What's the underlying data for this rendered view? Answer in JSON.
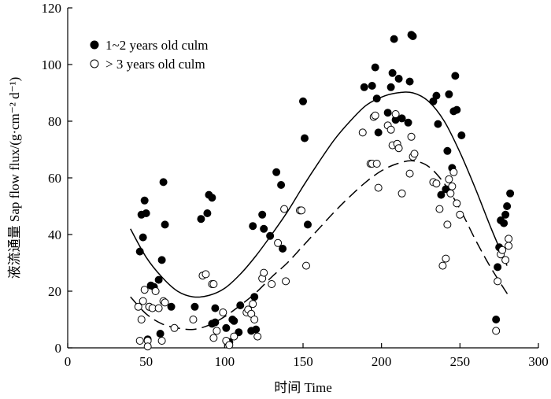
{
  "chart_data": {
    "type": "scatter",
    "title": "",
    "xlabel": "时间 Time",
    "ylabel": "液流通量 Sap flow flux/(g·cm⁻² d⁻¹)",
    "xlim": [
      0,
      300
    ],
    "ylim": [
      0,
      120
    ],
    "xticks": [
      0,
      50,
      100,
      150,
      200,
      250,
      300
    ],
    "yticks": [
      0,
      20,
      40,
      60,
      80,
      100,
      120
    ],
    "xtick_labels": [
      "0",
      "50",
      "100",
      "150",
      "200",
      "250",
      "300"
    ],
    "ytick_labels": [
      "0",
      "20",
      "40",
      "60",
      "80",
      "100",
      "120"
    ],
    "legend_position": "top-left",
    "series": [
      {
        "name": "1~2 years old culm",
        "marker": "filled-circle",
        "fit": "solid",
        "points": [
          [
            46,
            34
          ],
          [
            47,
            47
          ],
          [
            48,
            39
          ],
          [
            49,
            52
          ],
          [
            50,
            47.5
          ],
          [
            51,
            3
          ],
          [
            52,
            14.5
          ],
          [
            53,
            22
          ],
          [
            55,
            21.5
          ],
          [
            58,
            24
          ],
          [
            59,
            5
          ],
          [
            60,
            31
          ],
          [
            61,
            58.5
          ],
          [
            62,
            43.5
          ],
          [
            66,
            14.5
          ],
          [
            81,
            14.5
          ],
          [
            85,
            45.5
          ],
          [
            89,
            47.5
          ],
          [
            90,
            54
          ],
          [
            92,
            53
          ],
          [
            92,
            8.5
          ],
          [
            94,
            9
          ],
          [
            94,
            14
          ],
          [
            101,
            7
          ],
          [
            102,
            2
          ],
          [
            103,
            2
          ],
          [
            105,
            10
          ],
          [
            106,
            9.5
          ],
          [
            109,
            5.5
          ],
          [
            110,
            15
          ],
          [
            117,
            6
          ],
          [
            118,
            43
          ],
          [
            119,
            18
          ],
          [
            120,
            6.5
          ],
          [
            124,
            47
          ],
          [
            125,
            42
          ],
          [
            129,
            39.5
          ],
          [
            133,
            62
          ],
          [
            136,
            57.5
          ],
          [
            137,
            35
          ],
          [
            150,
            87
          ],
          [
            151,
            74
          ],
          [
            153,
            43.5
          ],
          [
            189,
            92
          ],
          [
            194,
            92.5
          ],
          [
            196,
            99
          ],
          [
            197,
            88
          ],
          [
            198,
            76
          ],
          [
            204,
            83
          ],
          [
            206,
            92
          ],
          [
            207,
            97
          ],
          [
            208,
            109
          ],
          [
            209,
            80.5
          ],
          [
            211,
            95
          ],
          [
            213,
            81
          ],
          [
            217,
            79.5
          ],
          [
            218,
            94
          ],
          [
            219,
            110.5
          ],
          [
            220,
            110
          ],
          [
            233,
            87
          ],
          [
            235,
            89
          ],
          [
            236,
            79
          ],
          [
            238,
            54
          ],
          [
            241,
            56
          ],
          [
            242,
            69.5
          ],
          [
            243,
            89.5
          ],
          [
            245,
            63.5
          ],
          [
            246,
            83.5
          ],
          [
            247,
            96
          ],
          [
            248,
            84
          ],
          [
            251,
            75
          ],
          [
            273,
            10
          ],
          [
            274,
            28.5
          ],
          [
            275,
            35.5
          ],
          [
            276,
            45
          ],
          [
            278,
            44
          ],
          [
            279,
            47
          ],
          [
            280,
            50
          ],
          [
            282,
            54.5
          ]
        ]
      },
      {
        "name": "> 3 years old culm",
        "marker": "open-circle",
        "fit": "dashed",
        "points": [
          [
            45,
            14.5
          ],
          [
            46,
            2.5
          ],
          [
            47,
            10
          ],
          [
            48,
            16.5
          ],
          [
            49,
            20.5
          ],
          [
            51,
            2.5
          ],
          [
            51,
            0.5
          ],
          [
            52,
            14.5
          ],
          [
            54,
            14
          ],
          [
            56,
            20
          ],
          [
            58,
            14
          ],
          [
            60,
            2.5
          ],
          [
            61,
            16.5
          ],
          [
            62,
            16
          ],
          [
            68,
            7
          ],
          [
            80,
            10
          ],
          [
            86,
            25.5
          ],
          [
            88,
            26
          ],
          [
            92,
            22.5
          ],
          [
            93,
            22.5
          ],
          [
            93,
            3.5
          ],
          [
            95,
            6
          ],
          [
            99,
            12.5
          ],
          [
            101,
            2.5
          ],
          [
            103,
            1
          ],
          [
            106,
            4
          ],
          [
            114,
            12.5
          ],
          [
            115,
            13.5
          ],
          [
            117,
            12
          ],
          [
            118,
            15.5
          ],
          [
            119,
            10
          ],
          [
            121,
            4
          ],
          [
            124,
            24.5
          ],
          [
            125,
            26.5
          ],
          [
            130,
            22.5
          ],
          [
            134,
            37
          ],
          [
            138,
            49
          ],
          [
            139,
            23.5
          ],
          [
            148,
            48.5
          ],
          [
            149,
            48.5
          ],
          [
            152,
            29
          ],
          [
            188,
            76
          ],
          [
            193,
            65
          ],
          [
            194,
            65
          ],
          [
            195,
            81.5
          ],
          [
            196,
            82
          ],
          [
            197,
            65
          ],
          [
            198,
            56.5
          ],
          [
            204,
            78.5
          ],
          [
            206,
            77
          ],
          [
            207,
            71.5
          ],
          [
            209,
            82.5
          ],
          [
            210,
            72
          ],
          [
            211,
            70.5
          ],
          [
            213,
            54.5
          ],
          [
            218,
            61.5
          ],
          [
            219,
            74.5
          ],
          [
            220,
            67.5
          ],
          [
            221,
            68.5
          ],
          [
            233,
            58.5
          ],
          [
            235,
            58
          ],
          [
            237,
            49
          ],
          [
            239,
            29
          ],
          [
            241,
            31.5
          ],
          [
            242,
            43.5
          ],
          [
            243,
            59.5
          ],
          [
            244,
            54.5
          ],
          [
            245,
            57
          ],
          [
            246,
            62
          ],
          [
            248,
            51
          ],
          [
            250,
            47
          ],
          [
            273,
            6
          ],
          [
            274,
            23.5
          ],
          [
            276,
            33
          ],
          [
            277,
            34.5
          ],
          [
            279,
            31
          ],
          [
            281,
            38.5
          ],
          [
            281,
            36
          ]
        ]
      }
    ],
    "fit_lines": [
      {
        "series": "1~2 years old culm",
        "style": "solid",
        "x": [
          40,
          50,
          60,
          70,
          80,
          90,
          100,
          110,
          120,
          130,
          140,
          150,
          160,
          170,
          180,
          190,
          200,
          210,
          220,
          230,
          240,
          250,
          260,
          270,
          280
        ],
        "y": [
          42,
          32,
          25,
          20,
          18,
          18.5,
          21,
          26,
          32.5,
          40,
          48,
          57,
          65.5,
          73.5,
          80,
          85.5,
          88.5,
          90,
          90,
          87,
          80,
          69,
          56,
          42,
          29
        ]
      },
      {
        "series": "> 3 years old culm",
        "style": "dashed",
        "x": [
          40,
          50,
          60,
          70,
          80,
          90,
          100,
          110,
          120,
          130,
          140,
          150,
          160,
          170,
          180,
          190,
          200,
          210,
          220,
          230,
          240,
          250,
          260,
          270,
          282
        ],
        "y": [
          18,
          12,
          8.5,
          7,
          6.5,
          8,
          11,
          15,
          19.5,
          25,
          30,
          36,
          42,
          48,
          53.5,
          58.5,
          62.5,
          65,
          66,
          64,
          58,
          49,
          38,
          28,
          17.5
        ]
      }
    ]
  }
}
